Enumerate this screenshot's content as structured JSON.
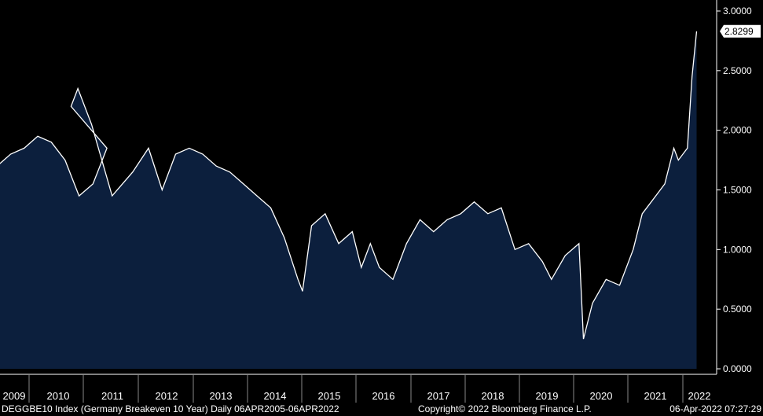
{
  "chart_data": {
    "type": "area",
    "series": [
      {
        "name": "",
        "x": [
          "2008-09",
          "2008-12",
          "2009-03",
          "2009-06",
          "2009-09",
          "2009-12",
          "2010-03",
          "2010-06",
          "2010-09",
          "2010-12",
          "2011-03",
          "2011-04",
          "2011-06",
          "2011-09",
          "2011-12",
          "2012-03",
          "2012-06",
          "2012-09",
          "2012-12",
          "2013-03",
          "2013-06",
          "2013-09",
          "2013-12",
          "2014-03",
          "2014-06",
          "2014-09",
          "2014-12",
          "2015-01",
          "2015-03",
          "2015-06",
          "2015-09",
          "2015-12",
          "2016-02",
          "2016-04",
          "2016-06",
          "2016-09",
          "2016-12",
          "2017-03",
          "2017-06",
          "2017-09",
          "2017-12",
          "2018-03",
          "2018-06",
          "2018-09",
          "2018-12",
          "2019-03",
          "2019-06",
          "2019-08",
          "2019-11",
          "2020-02",
          "2020-03",
          "2020-05",
          "2020-08",
          "2020-11",
          "2021-02",
          "2021-04",
          "2021-06",
          "2021-09",
          "2021-11",
          "2021-12",
          "2022-02",
          "2022-03",
          "2022-04"
        ],
        "values": [
          1.75,
          1.7,
          1.8,
          1.85,
          1.95,
          1.9,
          1.75,
          1.45,
          1.55,
          1.85,
          2.2,
          2.35,
          2.05,
          1.45,
          1.65,
          1.85,
          1.5,
          1.8,
          1.85,
          1.8,
          1.7,
          1.65,
          1.55,
          1.45,
          1.35,
          1.1,
          0.75,
          0.65,
          1.2,
          1.3,
          1.05,
          1.15,
          0.85,
          1.05,
          0.85,
          0.75,
          1.05,
          1.25,
          1.15,
          1.25,
          1.3,
          1.4,
          1.3,
          1.35,
          1.0,
          1.05,
          0.9,
          0.75,
          0.95,
          1.05,
          0.25,
          0.55,
          0.75,
          0.7,
          1.0,
          1.3,
          1.4,
          1.55,
          1.85,
          1.75,
          1.85,
          2.45,
          2.8299
        ]
      }
    ],
    "x_tick_labels": [
      "2009",
      "2010",
      "2011",
      "2012",
      "2013",
      "2014",
      "2015",
      "2016",
      "2017",
      "2018",
      "2019",
      "2020",
      "2021",
      "2022"
    ],
    "y_tick_labels": [
      "3.0000",
      "2.5000",
      "2.0000",
      "1.5000",
      "1.0000",
      "0.5000",
      "0.0000"
    ],
    "ylim": [
      0,
      3.0
    ],
    "last_value_label": "2.8299",
    "title": "",
    "xlabel": "",
    "ylabel": "",
    "grid": false,
    "colors": {
      "background": "#000000",
      "fill": "#0c1f3d",
      "line": "#ffffff",
      "axis": "#ffffff",
      "label_box": "#ffffff"
    }
  },
  "footer": {
    "left": "DEGGBE10 Index (Germany Breakeven 10 Year)  Daily 06APR2005-06APR2022",
    "center": "Copyright© 2022 Bloomberg Finance L.P.",
    "right": "06-Apr-2022 07:27:29"
  }
}
